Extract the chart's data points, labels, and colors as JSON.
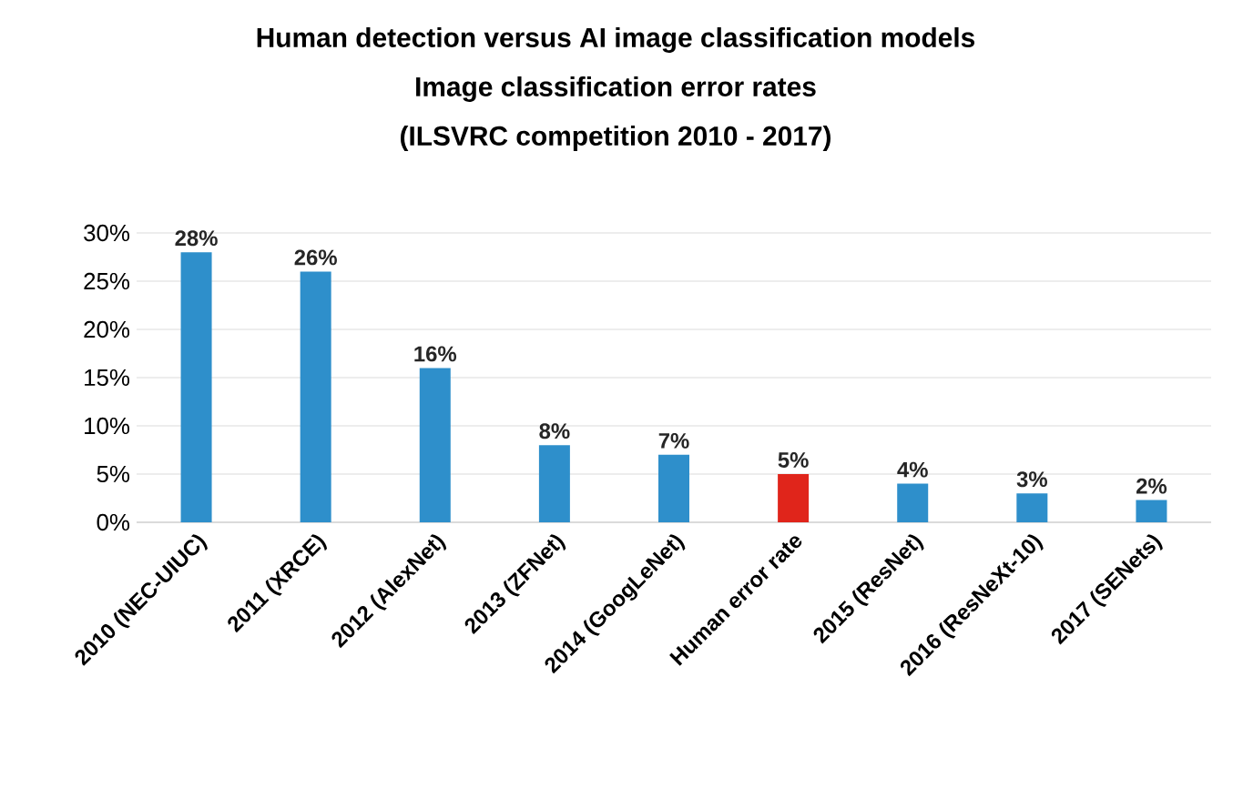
{
  "chart_data": {
    "type": "bar",
    "title": "Human detection versus AI image classification models",
    "subtitle": "Image classification error rates",
    "annotations": [
      "(ILSVRC competition 2010 - 2017)"
    ],
    "categories": [
      "2010 (NEC-UIUC)",
      "2011 (XRCE)",
      "2012 (AlexNet)",
      "2013 (ZFNet)",
      "2014 (GoogLeNet)",
      "Human error rate",
      "2015 (ResNet)",
      "2016 (ResNeXt-10)",
      "2017 (SENets)"
    ],
    "values": [
      28,
      26,
      16,
      8,
      7,
      5,
      4,
      3,
      2.3
    ],
    "value_labels": [
      "28%",
      "26%",
      "16%",
      "8%",
      "7%",
      "5%",
      "4%",
      "3%",
      "2%"
    ],
    "colors": [
      "#2e8fcb",
      "#2e8fcb",
      "#2e8fcb",
      "#2e8fcb",
      "#2e8fcb",
      "#e0251b",
      "#2e8fcb",
      "#2e8fcb",
      "#2e8fcb"
    ],
    "ylim": [
      0,
      30
    ],
    "yticks": [
      {
        "value": 0,
        "label": "0%"
      },
      {
        "value": 5,
        "label": "5%"
      },
      {
        "value": 10,
        "label": "10%"
      },
      {
        "value": 15,
        "label": "15%"
      },
      {
        "value": 20,
        "label": "20%"
      },
      {
        "value": 25,
        "label": "25%"
      },
      {
        "value": 30,
        "label": "30%"
      }
    ],
    "grid": "y"
  }
}
